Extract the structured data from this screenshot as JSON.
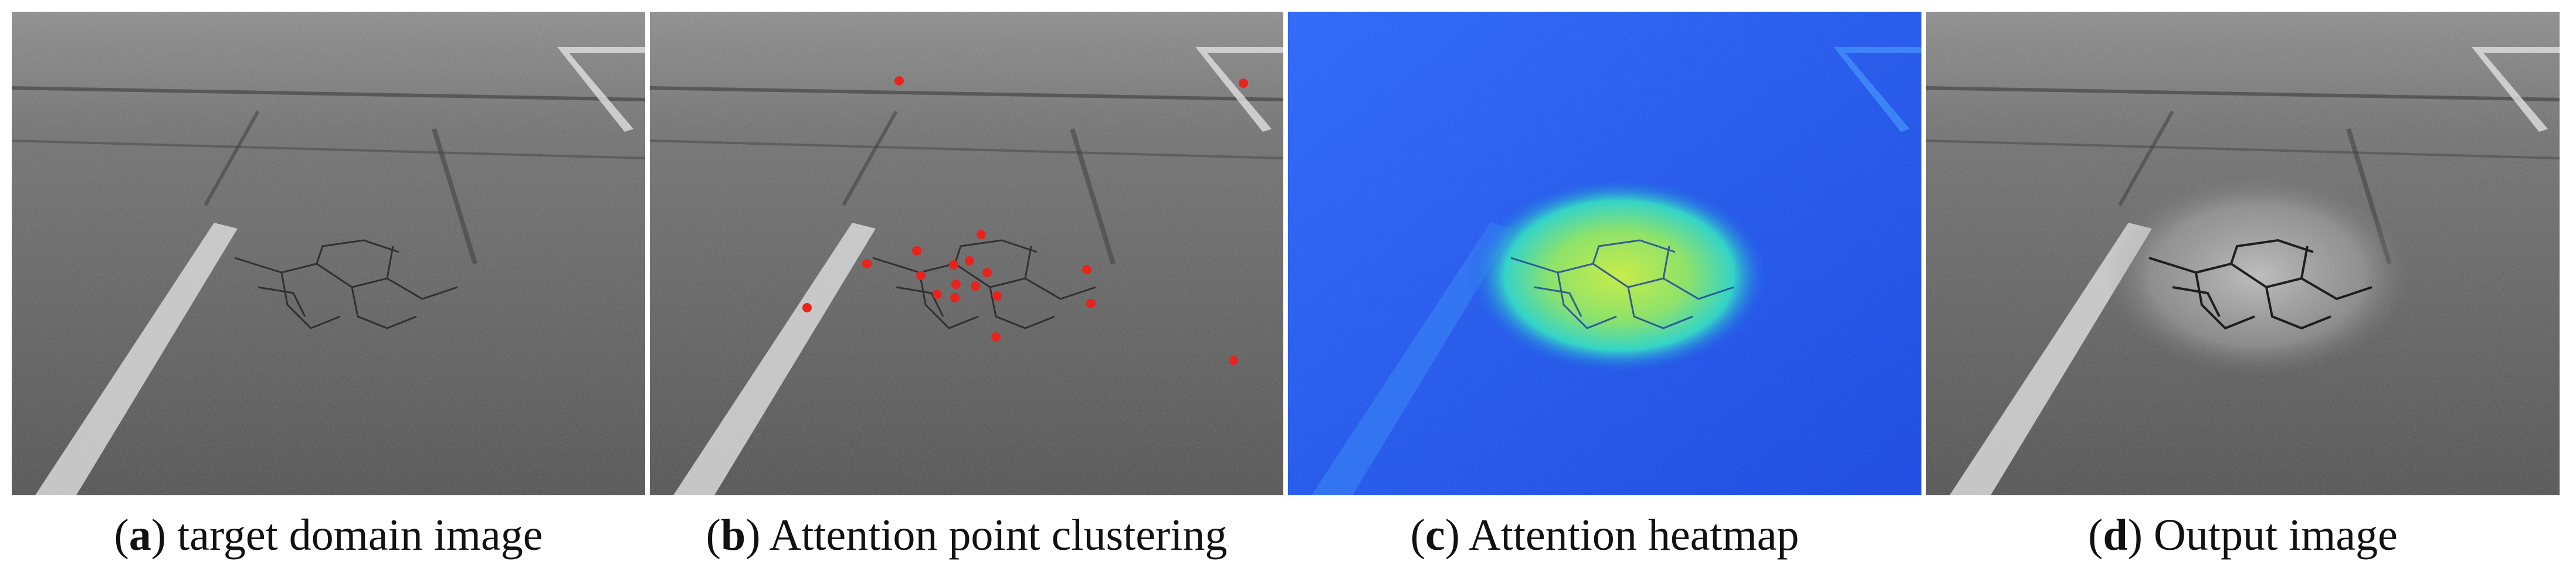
{
  "panels": [
    {
      "letter": "a",
      "caption": "target domain image",
      "style": "grayscale"
    },
    {
      "letter": "b",
      "caption": "Attention point clustering",
      "style": "grayscale-points"
    },
    {
      "letter": "c",
      "caption": "Attention heatmap",
      "style": "heatmap"
    },
    {
      "letter": "d",
      "caption": "Output image",
      "style": "highlighted"
    }
  ],
  "colors": {
    "point": "#e8231e",
    "heat_background": "#1e4cf0",
    "heat_core": "#b4e84a",
    "asphalt": "#5a5a5a"
  }
}
